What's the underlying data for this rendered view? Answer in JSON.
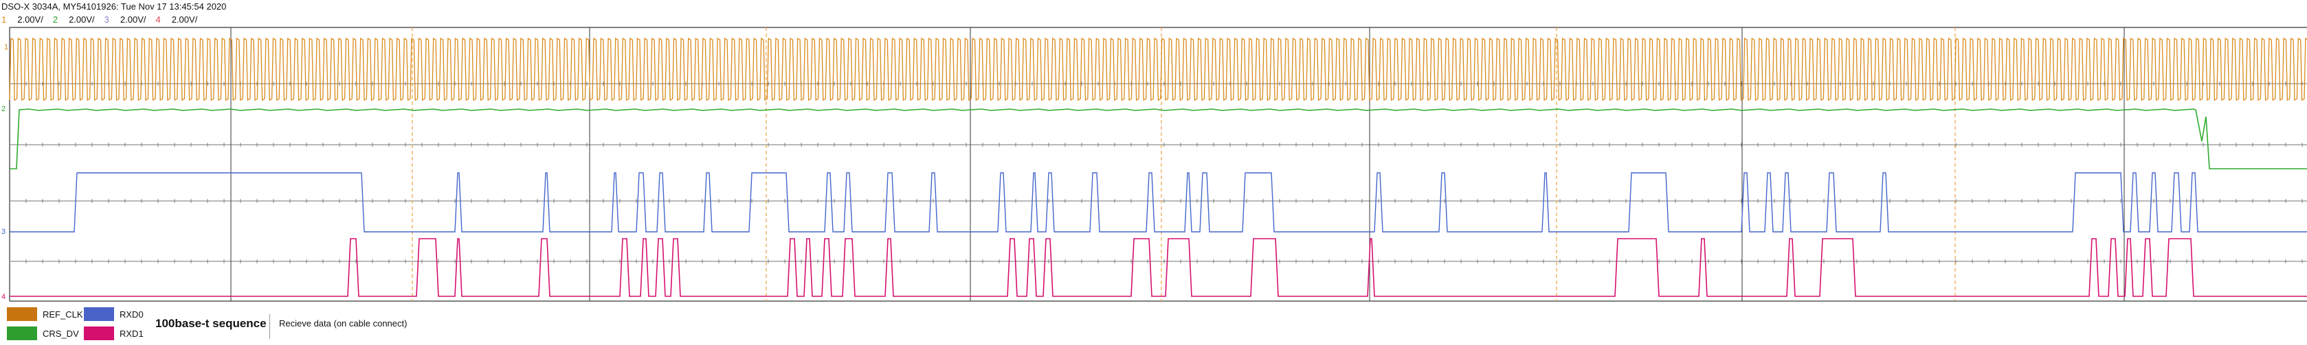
{
  "header": {
    "title": "DSO-X 3034A, MY54101926: Tue Nov 17 13:45:54 2020",
    "channels": [
      {
        "num": "1",
        "scale": "2.00V/",
        "color": "#d98a1a"
      },
      {
        "num": "2",
        "scale": "2.00V/",
        "color": "#2e9e2e"
      },
      {
        "num": "3",
        "scale": "2.00V/",
        "color": "#8a7fc9"
      },
      {
        "num": "4",
        "scale": "2.00V/",
        "color": "#e0445a"
      }
    ]
  },
  "markers": {
    "ch1": "1",
    "ch2": "2",
    "ch3": "3",
    "ch4": "4"
  },
  "colors": {
    "ref_clk": "#d98a1a",
    "crs_dv": "#2eab2e",
    "rxd0": "#4466cc",
    "rxd1": "#d6106e",
    "grid": "#222222",
    "marker_line": "#f0a040"
  },
  "legend": {
    "items": [
      {
        "label": "REF_CLK",
        "color": "#c87410"
      },
      {
        "label": "RXD0",
        "color": "#4b63c8"
      },
      {
        "label": "CRS_DV",
        "color": "#2e9e2e"
      },
      {
        "label": "RXD1",
        "color": "#d6106e"
      }
    ],
    "title": "100base-t sequence",
    "description": "Recieve data (on cable connect)"
  }
}
